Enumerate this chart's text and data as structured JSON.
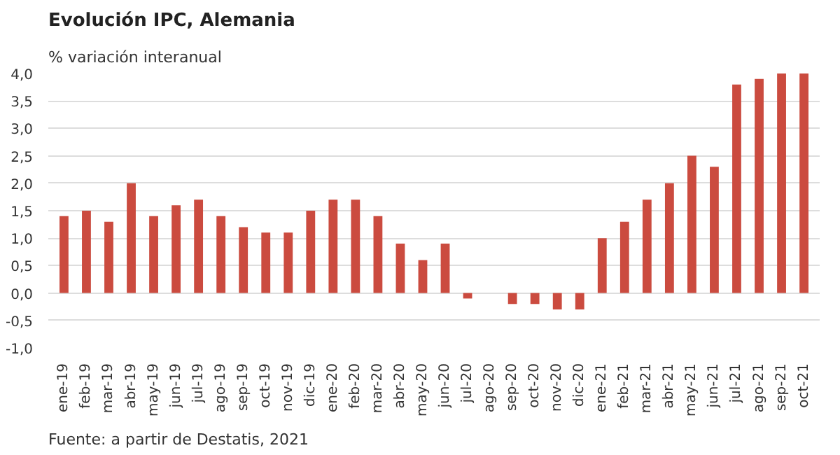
{
  "chart_data": {
    "type": "bar",
    "title": "Evolución IPC, Alemania",
    "subtitle": "% variación interanual",
    "categories": [
      "ene-19",
      "feb-19",
      "mar-19",
      "abr-19",
      "may-19",
      "jun-19",
      "jul-19",
      "ago-19",
      "sep-19",
      "oct-19",
      "nov-19",
      "dic-19",
      "ene-20",
      "feb-20",
      "mar-20",
      "abr-20",
      "may-20",
      "jun-20",
      "jul-20",
      "ago-20",
      "sep-20",
      "oct-20",
      "nov-20",
      "dic-20",
      "ene-21",
      "feb-21",
      "mar-21",
      "abr-21",
      "may-21",
      "jun-21",
      "jul-21",
      "ago-21",
      "sep-21",
      "oct-21"
    ],
    "values": [
      1.4,
      1.5,
      1.3,
      2.0,
      1.4,
      1.6,
      1.7,
      1.4,
      1.2,
      1.1,
      1.1,
      1.5,
      1.7,
      1.7,
      1.4,
      0.9,
      0.6,
      0.9,
      -0.1,
      0.0,
      -0.2,
      -0.2,
      -0.3,
      -0.3,
      1.0,
      1.3,
      1.7,
      2.0,
      2.5,
      2.3,
      3.8,
      3.9,
      4.0,
      4.0
    ],
    "color": "#cb4b3f",
    "ylim": [
      -1.0,
      4.0
    ],
    "yticks": [
      {
        "value": -1.0,
        "label": "-1,0"
      },
      {
        "value": -0.5,
        "label": "-0,5"
      },
      {
        "value": 0.0,
        "label": "0,0"
      },
      {
        "value": 0.5,
        "label": "0,5"
      },
      {
        "value": 1.0,
        "label": "1,0"
      },
      {
        "value": 1.5,
        "label": "1,5"
      },
      {
        "value": 2.0,
        "label": "2,0"
      },
      {
        "value": 2.5,
        "label": "2,5"
      },
      {
        "value": 3.0,
        "label": "3,0"
      },
      {
        "value": 3.5,
        "label": "3,5"
      },
      {
        "value": 4.0,
        "label": "4,0"
      }
    ],
    "grid": "y",
    "annotations": [
      "Fuente: a partir de Destatis, 2021"
    ]
  }
}
